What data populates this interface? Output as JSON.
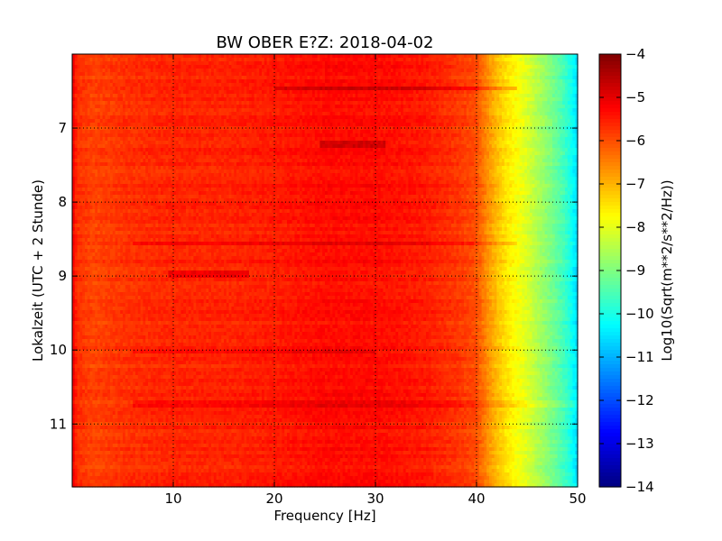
{
  "chart_data": {
    "type": "heatmap",
    "title": "BW OBER E?Z: 2018-04-02",
    "xlabel": "Frequency [Hz]",
    "ylabel": "Lokalzeit (UTC + 2 Stunde)",
    "xlim": [
      0,
      50
    ],
    "ylim": [
      11.85,
      6.0
    ],
    "y_inverted": true,
    "x_ticks": [
      10,
      20,
      30,
      40,
      50
    ],
    "y_ticks": [
      7,
      8,
      9,
      10,
      11
    ],
    "grid": true,
    "colorbar": {
      "label": "Log10(Sqrt(m**2/s**2/Hz))",
      "range": [
        -14,
        -4
      ],
      "ticks": [
        -4,
        -5,
        -6,
        -7,
        -8,
        -9,
        -10,
        -11,
        -12,
        -13,
        -14
      ],
      "colormap": "jet"
    },
    "spectrum_profile": {
      "frequency_hz": [
        0,
        0.5,
        2,
        6,
        10,
        15,
        20,
        25,
        30,
        35,
        38,
        40,
        41,
        42,
        43,
        44,
        45,
        46,
        47,
        48,
        49,
        49.5,
        50
      ],
      "log10_amplitude": [
        -5.1,
        -5.7,
        -5.9,
        -5.7,
        -5.6,
        -5.6,
        -5.5,
        -5.35,
        -5.35,
        -5.5,
        -5.75,
        -6.0,
        -6.6,
        -7.1,
        -7.5,
        -7.8,
        -8.1,
        -8.5,
        -8.9,
        -9.3,
        -9.8,
        -10.2,
        -10.6
      ]
    },
    "strong_bands": [
      {
        "hour": 6.45,
        "f_from": 20,
        "f_to": 44,
        "log10_offset": 0.55
      },
      {
        "hour": 7.22,
        "f_from": 24.5,
        "f_to": 31,
        "log10_offset": 0.6
      },
      {
        "hour": 8.55,
        "f_from": 6,
        "f_to": 44,
        "log10_offset": 0.35
      },
      {
        "hour": 8.98,
        "f_from": 9.5,
        "f_to": 17.5,
        "log10_offset": 0.55
      },
      {
        "hour": 10.03,
        "f_from": 6,
        "f_to": 30,
        "log10_offset": 0.4
      },
      {
        "hour": 10.73,
        "f_from": 6,
        "f_to": 50,
        "log10_offset": 0.35
      }
    ]
  }
}
